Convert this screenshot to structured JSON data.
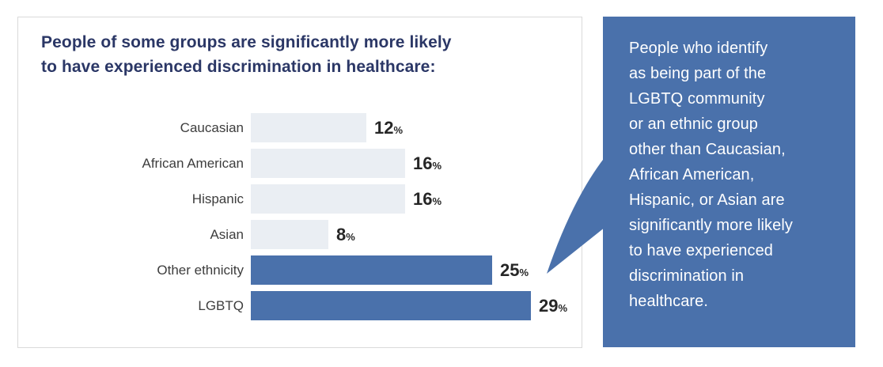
{
  "chart": {
    "title_lines": [
      "People of some groups are significantly more likely",
      "to have experienced discrimination in healthcare:"
    ]
  },
  "chart_data": {
    "type": "bar",
    "orientation": "horizontal",
    "title": "People of some groups are significantly more likely to have experienced discrimination in healthcare:",
    "categories": [
      "Caucasian",
      "African American",
      "Hispanic",
      "Asian",
      "Other ethnicity",
      "LGBTQ"
    ],
    "values": [
      12,
      16,
      16,
      8,
      25,
      29
    ],
    "unit": "%",
    "value_labels": [
      "12%",
      "16%",
      "16%",
      "8%",
      "25%",
      "29%"
    ],
    "highlight": [
      false,
      false,
      false,
      false,
      true,
      true
    ],
    "xlim": [
      0,
      34
    ],
    "grid": false,
    "legend": false,
    "axis_ticks": "none",
    "bar_color_default": "#eaeef3",
    "bar_color_highlight": "#4a71ab",
    "value_label_color": "#262626",
    "category_label_color": "#3d3d3d"
  },
  "callout": {
    "lines": [
      "People who identify",
      "as being part of the",
      "LGBTQ community",
      "or an ethnic group",
      "other than Caucasian,",
      "African American,",
      "Hispanic, or Asian are",
      "significantly more likely",
      "to have experienced",
      "discrimination in",
      "healthcare."
    ],
    "background": "#4a71ab",
    "text_color": "#ffffff"
  },
  "colors": {
    "title_navy": "#2b3766",
    "card_border": "#dadada",
    "page_background": "#ffffff"
  }
}
